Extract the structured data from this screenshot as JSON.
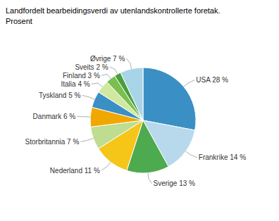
{
  "chart_data": {
    "type": "pie",
    "title": "Landfordelt bearbeidingsverdi av utenlandskontrollerte foretak.",
    "subtitle": "Prosent",
    "categories": [
      "USA 28 %",
      "Frankrike 14 %",
      "Sverige 13 %",
      "Nederland 11 %",
      "Storbritannia 7 %",
      "Danmark 6 %",
      "Tyskland 5 %",
      "Italia 4 %",
      "Finland 3 %",
      "Sveits 2 %",
      "Øvrige 7 %"
    ],
    "values": [
      28,
      14,
      13,
      11,
      7,
      6,
      5,
      4,
      3,
      2,
      7
    ],
    "colors": [
      "#3A90C4",
      "#B8D9EC",
      "#4EAA4E",
      "#F5C518",
      "#BEDD90",
      "#F0A800",
      "#3A8FC4",
      "#D0E8A0",
      "#7CBF50",
      "#4A9E3C",
      "#A8D4E8"
    ]
  }
}
